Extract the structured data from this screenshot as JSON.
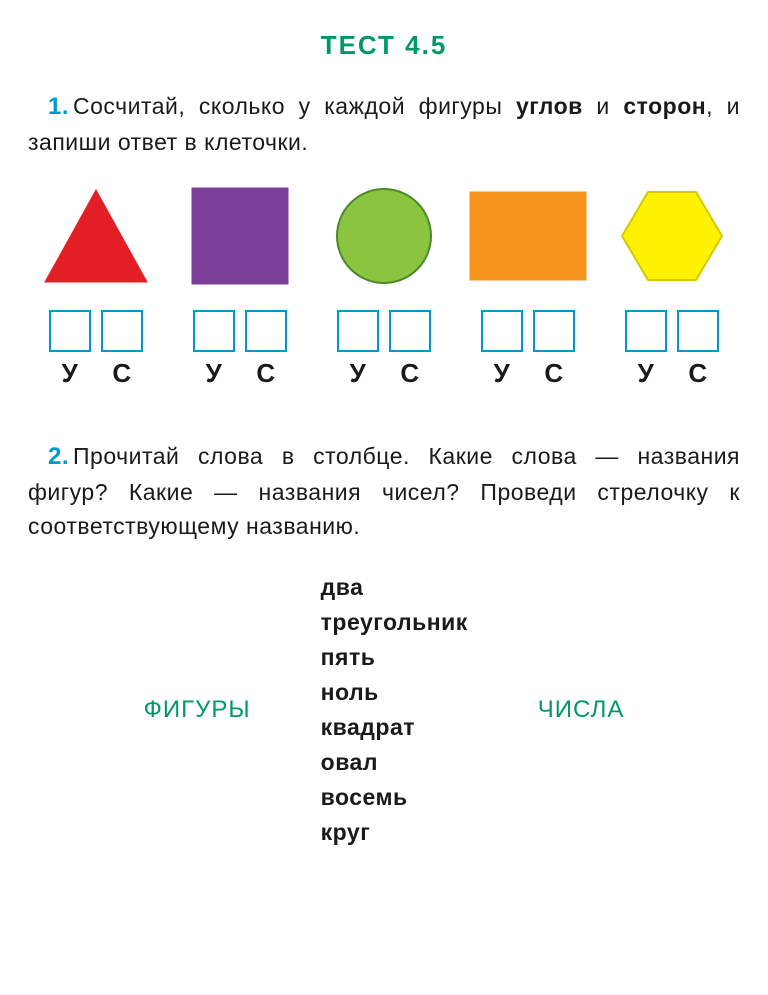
{
  "title": "ТЕСТ 4.5",
  "title_color": "#009966",
  "q1": {
    "num": "1.",
    "num_color": "#0099cc",
    "text_before": "Сосчитай, сколько у каждой фигуры ",
    "bold1": "уг­лов",
    "text_mid": " и ",
    "bold2": "сторон",
    "text_after": ", и запиши ответ в клеточки."
  },
  "shapes": [
    {
      "type": "triangle",
      "fill": "#e31e24",
      "stroke": "#e31e24"
    },
    {
      "type": "square",
      "fill": "#7b3f98",
      "stroke": "#7b3f98"
    },
    {
      "type": "circle",
      "fill": "#8bc53f",
      "stroke": "#4a8a2a"
    },
    {
      "type": "rectangle",
      "fill": "#f7941d",
      "stroke": "#f7941d"
    },
    {
      "type": "hexagon",
      "fill": "#fff200",
      "stroke": "#d4c800"
    }
  ],
  "box_border_color": "#0099cc",
  "box_labels": [
    "У",
    "С"
  ],
  "q2": {
    "num": "2.",
    "num_color": "#0099cc",
    "text": "Прочитай слова в столбце. Какие сло­ва — названия фигур? Какие — названия чи­сел? Проведи стрелочку к соответствующему названию."
  },
  "matching": {
    "left": "ФИГУРЫ",
    "right": "ЧИСЛА",
    "side_color": "#009966",
    "words": [
      "два",
      "треугольник",
      "пять",
      "ноль",
      "квадрат",
      "овал",
      "восемь",
      "круг"
    ]
  }
}
